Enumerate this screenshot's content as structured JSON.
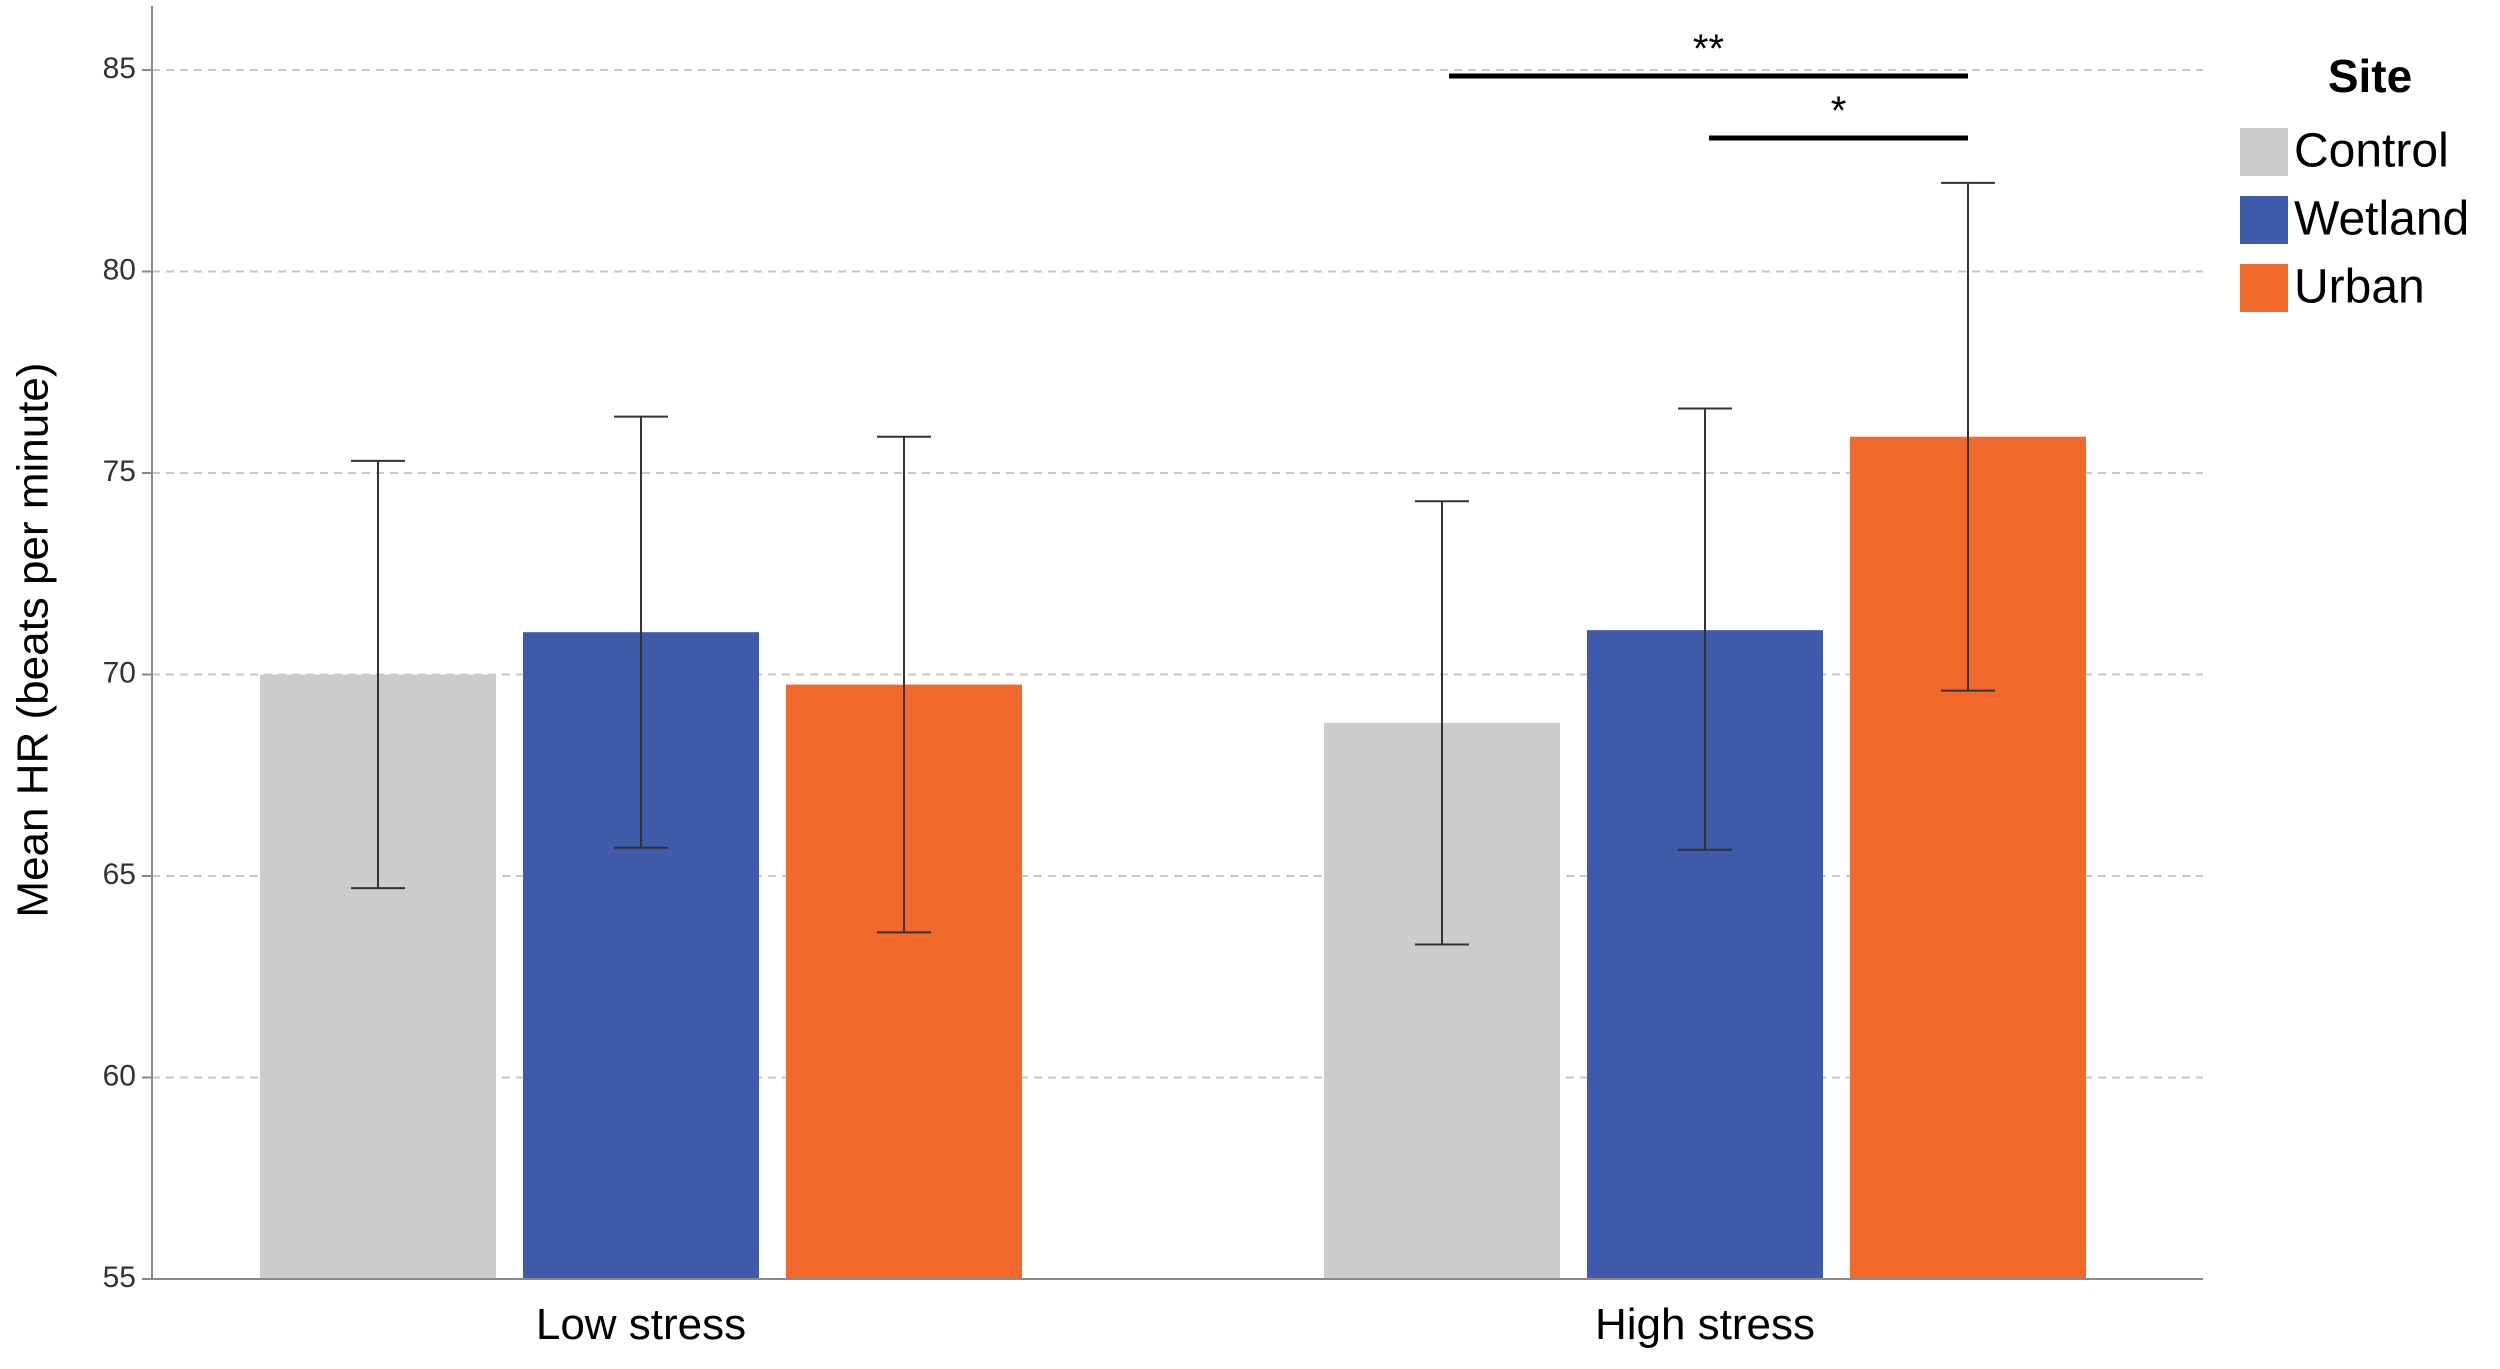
{
  "chart_data": {
    "type": "bar",
    "title": "",
    "xlabel": "",
    "ylabel": "Mean HR (beats per minute)",
    "ylim": [
      55,
      86.5
    ],
    "yticks": [
      55,
      60,
      65,
      70,
      75,
      80,
      85
    ],
    "yticklabels": [
      "55",
      "60",
      "65",
      "70",
      "75",
      "80",
      "85"
    ],
    "grid": true,
    "categories": [
      "Low stress",
      "High stress"
    ],
    "legend": {
      "title": "Site",
      "position": "top-right"
    },
    "series": [
      {
        "name": "Control",
        "color": "#cccccc",
        "values": [
          70.0,
          68.8
        ],
        "error_low": [
          64.7,
          63.3
        ],
        "error_high": [
          75.3,
          74.3
        ]
      },
      {
        "name": "Wetland",
        "color": "#3f5aa8",
        "values": [
          71.05,
          71.1
        ],
        "error_low": [
          65.7,
          65.65
        ],
        "error_high": [
          76.4,
          76.6
        ]
      },
      {
        "name": "Urban",
        "color": "#f1692b",
        "values": [
          69.75,
          75.9
        ],
        "error_low": [
          63.6,
          69.6
        ],
        "error_high": [
          75.9,
          82.2
        ]
      }
    ],
    "annotations": [
      {
        "label": "**",
        "category": "High stress",
        "from_series": "Control",
        "to_series": "Urban",
        "y": 84.8
      },
      {
        "label": "*",
        "category": "High stress",
        "from_series": "Wetland",
        "to_series": "Urban",
        "y": 83.3
      }
    ]
  }
}
